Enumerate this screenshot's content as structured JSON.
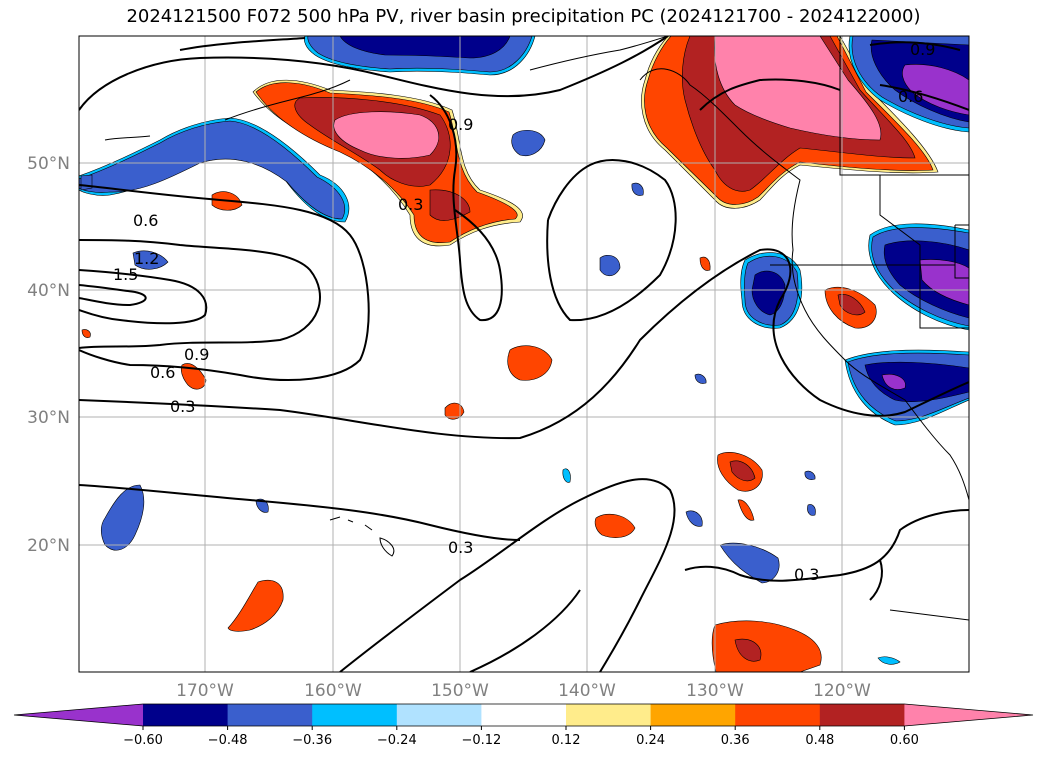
{
  "title": "2024121500 F072 500 hPa PV, river basin precipitation PC (2024121700 - 2024122000)",
  "latitude_labels": [
    "50°N",
    "40°N",
    "30°N",
    "20°N"
  ],
  "longitude_labels": [
    "170°W",
    "160°W",
    "150°W",
    "140°W",
    "130°W",
    "120°W"
  ],
  "contour_labels": [
    "0.6",
    "1.2",
    "1.5",
    "0.9",
    "0.6",
    "0.3",
    "0.3",
    "0.9",
    "0.9",
    "0.6",
    "0.3",
    "0.3"
  ],
  "colorbar": {
    "tick_labels": [
      "−0.60",
      "−0.48",
      "−0.36",
      "−0.24",
      "−0.12",
      "0.12",
      "0.24",
      "0.36",
      "0.48",
      "0.60"
    ],
    "colors": [
      "#9932CC",
      "#00008B",
      "#3A5FCD",
      "#00BFFF",
      "#B0E2FF",
      "#FFFFFF",
      "#FFEC8B",
      "#FFA500",
      "#FF4500",
      "#B22222",
      "#FF82AB"
    ]
  },
  "colors": {
    "positive_high": "#FF82AB",
    "positive_mid": "#B22222",
    "positive_low": "#FF4500",
    "negative_high": "#9932CC",
    "negative_mid": "#00008B",
    "negative_low": "#3A5FCD",
    "gridline": "#b0b0b0",
    "axis_label": "#808080"
  }
}
